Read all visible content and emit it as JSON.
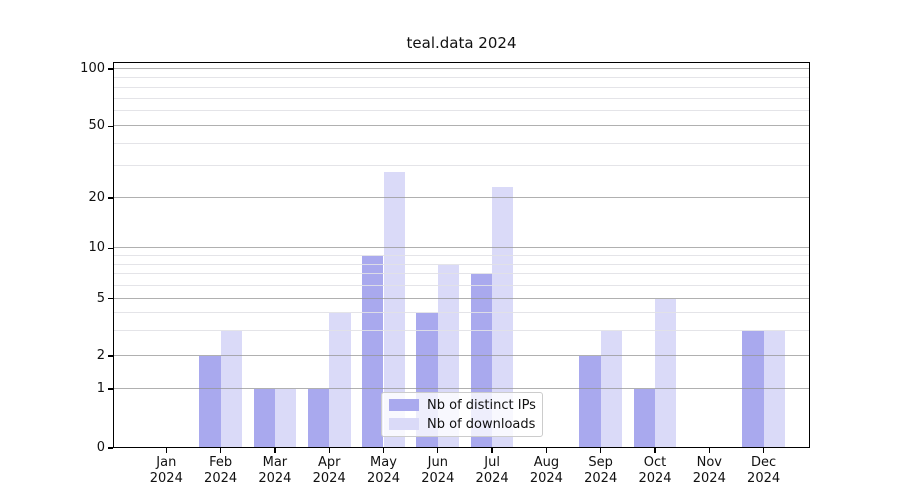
{
  "title": "teal.data 2024",
  "chart_data": {
    "type": "bar",
    "title": "teal.data 2024",
    "categories": [
      "Jan 2024",
      "Feb 2024",
      "Mar 2024",
      "Apr 2024",
      "May 2024",
      "Jun 2024",
      "Jul 2024",
      "Aug 2024",
      "Sep 2024",
      "Oct 2024",
      "Nov 2024",
      "Dec 2024"
    ],
    "series": [
      {
        "name": "Nb of distinct IPs",
        "color": "#a9a9ee",
        "values": [
          0,
          2,
          1,
          1,
          9,
          4,
          7,
          0,
          2,
          1,
          0,
          3
        ]
      },
      {
        "name": "Nb of downloads",
        "color": "#dadaf8",
        "values": [
          0,
          3,
          1,
          4,
          28,
          8,
          23,
          0,
          3,
          5,
          0,
          3
        ]
      }
    ],
    "xlabel": "",
    "ylabel": "",
    "yscale": "log-like",
    "ylim": [
      0,
      110
    ],
    "y_major_ticks": [
      0,
      1,
      2,
      5,
      10,
      20,
      50,
      100
    ],
    "y_major_tick_labels": [
      "0",
      "1",
      "2",
      "5",
      "10",
      "20",
      "50",
      "100"
    ],
    "y_minor_ticks": [
      3,
      4,
      6,
      7,
      8,
      9,
      30,
      40,
      60,
      70,
      80,
      90
    ],
    "grid": true,
    "legend_position": "lower center"
  }
}
